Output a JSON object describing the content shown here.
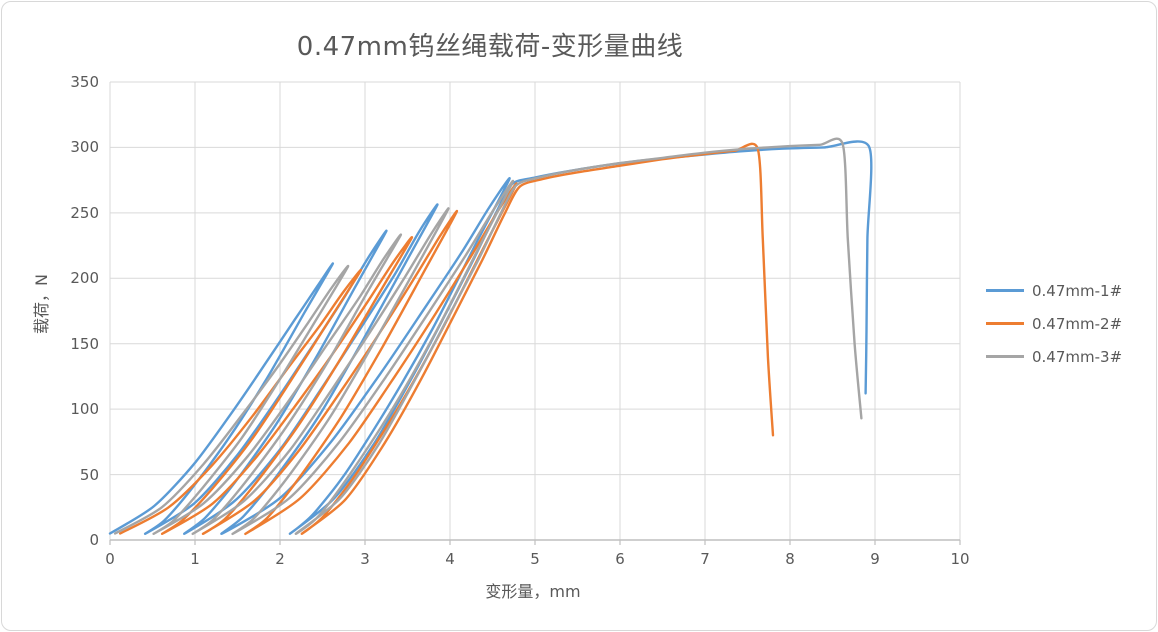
{
  "style": {
    "grid_color": "#d9d9d9",
    "axis_line_color": "#bfbfbf",
    "tick_color": "#bfbfbf",
    "text_color": "#595959",
    "card_border_color": "#d8d8d8",
    "background": "#ffffff"
  },
  "chart_data": {
    "type": "line",
    "title": "0.47mm钨丝绳载荷-变形量曲线",
    "xlabel": "变形量，mm",
    "ylabel": "载荷，N",
    "xlim": [
      0,
      10
    ],
    "ylim": [
      0,
      350
    ],
    "x_ticks": [
      0,
      1,
      2,
      3,
      4,
      5,
      6,
      7,
      8,
      9,
      10
    ],
    "y_ticks": [
      0,
      50,
      100,
      150,
      200,
      250,
      300,
      350
    ],
    "grid": true,
    "legend_position": "right",
    "series": [
      {
        "name": "0.47mm-1#",
        "color": "#5b9bd5",
        "points": [
          [
            0,
            5
          ],
          [
            0.52,
            26
          ],
          [
            1.0,
            59
          ],
          [
            1.44,
            98
          ],
          [
            1.83,
            135
          ],
          [
            2.17,
            168
          ],
          [
            2.44,
            194
          ],
          [
            2.62,
            211
          ],
          [
            2.29,
            174
          ],
          [
            1.85,
            124
          ],
          [
            1.41,
            79
          ],
          [
            0.97,
            40
          ],
          [
            0.64,
            15
          ],
          [
            0.42,
            5
          ],
          [
            0.99,
            28
          ],
          [
            1.5,
            65
          ],
          [
            1.98,
            109
          ],
          [
            2.4,
            150
          ],
          [
            2.77,
            187
          ],
          [
            3.05,
            217
          ],
          [
            3.25,
            236
          ],
          [
            2.89,
            194
          ],
          [
            2.42,
            139
          ],
          [
            1.95,
            88
          ],
          [
            1.47,
            44
          ],
          [
            1.12,
            17
          ],
          [
            0.88,
            5
          ],
          [
            1.47,
            30
          ],
          [
            2.01,
            70
          ],
          [
            2.51,
            118
          ],
          [
            2.96,
            163
          ],
          [
            3.35,
            203
          ],
          [
            3.64,
            236
          ],
          [
            3.85,
            256
          ],
          [
            3.47,
            211
          ],
          [
            2.96,
            151
          ],
          [
            2.46,
            95
          ],
          [
            1.95,
            48
          ],
          [
            1.57,
            18
          ],
          [
            1.32,
            5
          ],
          [
            2.0,
            32
          ],
          [
            2.6,
            75
          ],
          [
            3.18,
            127
          ],
          [
            3.69,
            176
          ],
          [
            4.13,
            219
          ],
          [
            4.46,
            254
          ],
          [
            4.7,
            276
          ],
          [
            4.31,
            227
          ],
          [
            3.8,
            162
          ],
          [
            3.28,
            103
          ],
          [
            2.77,
            51
          ],
          [
            2.38,
            19
          ],
          [
            2.12,
            5
          ],
          [
            2.64,
            32
          ],
          [
            3.11,
            74
          ],
          [
            3.56,
            125
          ],
          [
            3.95,
            173
          ],
          [
            4.29,
            216
          ],
          [
            4.55,
            251
          ],
          [
            4.73,
            272
          ],
          [
            5.0,
            277
          ],
          [
            5.4,
            282
          ],
          [
            5.9,
            287
          ],
          [
            6.4,
            291
          ],
          [
            6.9,
            294
          ],
          [
            7.4,
            297
          ],
          [
            7.9,
            299
          ],
          [
            8.4,
            300
          ],
          [
            8.93,
            300.5
          ],
          [
            8.91,
            230
          ],
          [
            8.9,
            160
          ],
          [
            8.89,
            112
          ]
        ]
      },
      {
        "name": "0.47mm-2#",
        "color": "#ed7d31",
        "points": [
          [
            0.12,
            5
          ],
          [
            0.69,
            25
          ],
          [
            1.2,
            57
          ],
          [
            1.68,
            95
          ],
          [
            2.1,
            132
          ],
          [
            2.47,
            164
          ],
          [
            2.75,
            190
          ],
          [
            2.95,
            206
          ],
          [
            2.6,
            170
          ],
          [
            2.13,
            122
          ],
          [
            1.67,
            77
          ],
          [
            1.2,
            39
          ],
          [
            0.85,
            15
          ],
          [
            0.62,
            5
          ],
          [
            1.21,
            28
          ],
          [
            1.73,
            64
          ],
          [
            2.23,
            107
          ],
          [
            2.67,
            147
          ],
          [
            3.05,
            184
          ],
          [
            3.34,
            213
          ],
          [
            3.55,
            231
          ],
          [
            3.18,
            190
          ],
          [
            2.69,
            136
          ],
          [
            2.2,
            86
          ],
          [
            1.71,
            43
          ],
          [
            1.35,
            16
          ],
          [
            1.1,
            5
          ],
          [
            1.7,
            30
          ],
          [
            2.23,
            69
          ],
          [
            2.74,
            116
          ],
          [
            3.19,
            160
          ],
          [
            3.57,
            199
          ],
          [
            3.87,
            231
          ],
          [
            4.08,
            251
          ],
          [
            3.71,
            207
          ],
          [
            3.21,
            148
          ],
          [
            2.72,
            94
          ],
          [
            2.22,
            47
          ],
          [
            1.85,
            17
          ],
          [
            1.6,
            5
          ],
          [
            2.24,
            32
          ],
          [
            2.81,
            74
          ],
          [
            3.35,
            125
          ],
          [
            3.83,
            173
          ],
          [
            4.24,
            216
          ],
          [
            4.56,
            251
          ],
          [
            4.78,
            272
          ],
          [
            4.4,
            224
          ],
          [
            3.9,
            160
          ],
          [
            3.39,
            101
          ],
          [
            2.89,
            50
          ],
          [
            2.51,
            18
          ],
          [
            2.26,
            5
          ],
          [
            2.77,
            31
          ],
          [
            3.23,
            74
          ],
          [
            3.67,
            124
          ],
          [
            4.05,
            172
          ],
          [
            4.38,
            214
          ],
          [
            4.64,
            249
          ],
          [
            4.82,
            270
          ],
          [
            5.1,
            276
          ],
          [
            5.5,
            281
          ],
          [
            6.0,
            286
          ],
          [
            6.5,
            291
          ],
          [
            7.0,
            295
          ],
          [
            7.35,
            297.5
          ],
          [
            7.62,
            299
          ],
          [
            7.68,
            230
          ],
          [
            7.74,
            140
          ],
          [
            7.8,
            80
          ]
        ]
      },
      {
        "name": "0.47mm-3#",
        "color": "#a5a5a5",
        "points": [
          [
            0.06,
            5
          ],
          [
            0.61,
            25
          ],
          [
            1.1,
            58
          ],
          [
            1.57,
            97
          ],
          [
            1.98,
            133
          ],
          [
            2.33,
            166
          ],
          [
            2.61,
            193
          ],
          [
            2.8,
            209
          ],
          [
            2.46,
            172
          ],
          [
            2.0,
            123
          ],
          [
            1.55,
            78
          ],
          [
            1.09,
            40
          ],
          [
            0.75,
            15
          ],
          [
            0.52,
            5
          ],
          [
            1.1,
            28
          ],
          [
            1.62,
            64
          ],
          [
            2.12,
            108
          ],
          [
            2.55,
            149
          ],
          [
            2.93,
            185
          ],
          [
            3.22,
            215
          ],
          [
            3.42,
            233
          ],
          [
            3.05,
            192
          ],
          [
            2.57,
            137
          ],
          [
            2.08,
            87
          ],
          [
            1.59,
            44
          ],
          [
            1.22,
            16
          ],
          [
            0.98,
            5
          ],
          [
            1.58,
            30
          ],
          [
            2.12,
            69
          ],
          [
            2.63,
            117
          ],
          [
            3.08,
            161
          ],
          [
            3.47,
            201
          ],
          [
            3.77,
            233
          ],
          [
            3.98,
            253
          ],
          [
            3.6,
            208
          ],
          [
            3.09,
            149
          ],
          [
            2.59,
            94
          ],
          [
            2.08,
            47
          ],
          [
            1.7,
            17
          ],
          [
            1.45,
            5
          ],
          [
            2.11,
            32
          ],
          [
            2.7,
            75
          ],
          [
            3.26,
            126
          ],
          [
            3.75,
            174
          ],
          [
            4.18,
            217
          ],
          [
            4.51,
            252
          ],
          [
            4.74,
            274
          ],
          [
            4.36,
            226
          ],
          [
            3.85,
            161
          ],
          [
            3.34,
            102
          ],
          [
            2.83,
            51
          ],
          [
            2.45,
            18
          ],
          [
            2.19,
            5
          ],
          [
            2.71,
            32
          ],
          [
            3.17,
            74
          ],
          [
            3.61,
            125
          ],
          [
            4.0,
            173
          ],
          [
            4.34,
            215
          ],
          [
            4.6,
            250
          ],
          [
            4.78,
            271
          ],
          [
            5.05,
            277
          ],
          [
            5.5,
            283
          ],
          [
            6.0,
            288
          ],
          [
            6.5,
            292
          ],
          [
            7.0,
            296
          ],
          [
            7.5,
            299
          ],
          [
            8.0,
            301
          ],
          [
            8.35,
            302
          ],
          [
            8.62,
            302.5
          ],
          [
            8.68,
            230
          ],
          [
            8.76,
            150
          ],
          [
            8.84,
            93
          ]
        ]
      }
    ]
  }
}
